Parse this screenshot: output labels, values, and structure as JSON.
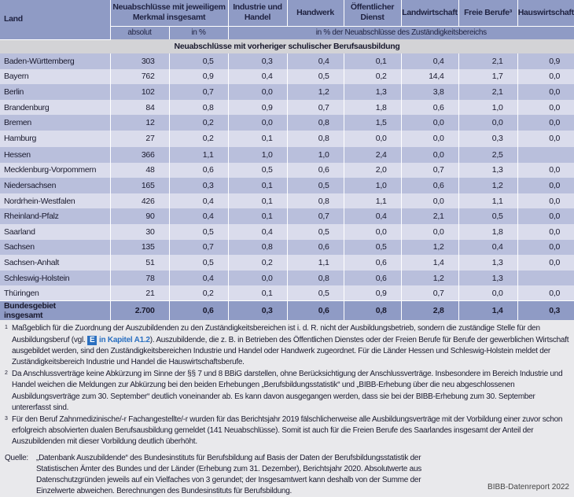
{
  "header": {
    "land": "Land",
    "neuabschluesse": "Neuabschlüsse mit jeweiligem Merkmal insgesamt",
    "columns": [
      "Industrie und Handel",
      "Handwerk",
      "Öffentlicher Dienst",
      "Landwirtschaft",
      "Freie Berufe³",
      "Hauswirtschaft"
    ],
    "absolut": "absolut",
    "in_pct": "in %",
    "in_pct_bereich": "in % der Neuabschlüsse des Zuständigkeitsbereichs"
  },
  "section_title": "Neuabschlüsse mit vorheriger schulischer Berufsausbildung",
  "rows": [
    [
      "Baden-Württemberg",
      "303",
      "0,5",
      "0,3",
      "0,4",
      "0,1",
      "0,4",
      "2,1",
      "0,9"
    ],
    [
      "Bayern",
      "762",
      "0,9",
      "0,4",
      "0,5",
      "0,2",
      "14,4",
      "1,7",
      "0,0"
    ],
    [
      "Berlin",
      "102",
      "0,7",
      "0,0",
      "1,2",
      "1,3",
      "3,8",
      "2,1",
      "0,0"
    ],
    [
      "Brandenburg",
      "84",
      "0,8",
      "0,9",
      "0,7",
      "1,8",
      "0,6",
      "1,0",
      "0,0"
    ],
    [
      "Bremen",
      "12",
      "0,2",
      "0,0",
      "0,8",
      "1,5",
      "0,0",
      "0,0",
      "0,0"
    ],
    [
      "Hamburg",
      "27",
      "0,2",
      "0,1",
      "0,8",
      "0,0",
      "0,0",
      "0,3",
      "0,0"
    ],
    [
      "Hessen",
      "366",
      "1,1",
      "1,0",
      "1,0",
      "2,4",
      "0,0",
      "2,5",
      ""
    ],
    [
      "Mecklenburg-Vorpommern",
      "48",
      "0,6",
      "0,5",
      "0,6",
      "2,0",
      "0,7",
      "1,3",
      "0,0"
    ],
    [
      "Niedersachsen",
      "165",
      "0,3",
      "0,1",
      "0,5",
      "1,0",
      "0,6",
      "1,2",
      "0,0"
    ],
    [
      "Nordrhein-Westfalen",
      "426",
      "0,4",
      "0,1",
      "0,8",
      "1,1",
      "0,0",
      "1,1",
      "0,0"
    ],
    [
      "Rheinland-Pfalz",
      "90",
      "0,4",
      "0,1",
      "0,7",
      "0,4",
      "2,1",
      "0,5",
      "0,0"
    ],
    [
      "Saarland",
      "30",
      "0,5",
      "0,4",
      "0,5",
      "0,0",
      "0,0",
      "1,8",
      "0,0"
    ],
    [
      "Sachsen",
      "135",
      "0,7",
      "0,8",
      "0,6",
      "0,5",
      "1,2",
      "0,4",
      "0,0"
    ],
    [
      "Sachsen-Anhalt",
      "51",
      "0,5",
      "0,2",
      "1,1",
      "0,6",
      "1,4",
      "1,3",
      "0,0"
    ],
    [
      "Schleswig-Holstein",
      "78",
      "0,4",
      "0,0",
      "0,8",
      "0,6",
      "1,2",
      "1,3",
      ""
    ],
    [
      "Thüringen",
      "21",
      "0,2",
      "0,1",
      "0,5",
      "0,9",
      "0,7",
      "0,0",
      "0,0"
    ]
  ],
  "total": [
    "Bundesgebiet insgesamt",
    "2.700",
    "0,6",
    "0,3",
    "0,6",
    "0,8",
    "2,8",
    "1,4",
    "0,3"
  ],
  "footnotes": {
    "fn1_mark": "1",
    "fn1_a": "Maßgeblich für die Zuordnung der Auszubildenden zu den Zuständigkeitsbereichen ist i. d. R. nicht der Ausbildungsbetrieb, sondern die zuständige Stelle für den Ausbildungsberuf (vgl.",
    "fn1_icon": "E",
    "fn1_link": "in Kapitel A1.2",
    "fn1_b": "). Auszubildende, die z. B. in Betrieben des Öffentlichen Dienstes oder der Freien Berufe für Berufe der gewerblichen Wirtschaft ausgebildet werden, sind den Zuständigkeitsbereichen Industrie und Handel oder Handwerk zugeordnet. Für die Länder Hessen und Schleswig-Holstein meldet der Zuständigkeitsbereich Industrie und Handel die Hauswirtschaftsberufe.",
    "fn2_mark": "2",
    "fn2": "Da Anschlussverträge keine Abkürzung im Sinne der §§ 7 und 8 BBiG darstellen, ohne Berücksichtigung der Anschlussverträge. Insbesondere im Bereich Industrie und Handel weichen die Meldungen zur Abkürzung bei den beiden Erhebungen „Berufsbildungsstatistik“ und „BIBB-Erhebung über die neu abgeschlossenen Ausbildungsverträge zum 30. September“ deutlich voneinander ab. Es kann davon ausgegangen werden, dass sie bei der BIBB-Erhebung zum 30. September untererfasst sind.",
    "fn3_mark": "3",
    "fn3": "Für den Beruf Zahnmedizinische/-r Fachangestellte/-r wurden für das Berichtsjahr 2019 fälschlicherweise alle Ausbildungsverträge mit der Vorbildung einer zuvor schon erfolgreich absolvierten dualen Berufsausbildung gemeldet (141 Neuabschlüsse). Somit ist auch für die Freien Berufe des Saarlandes insgesamt der Anteil der Auszubildenden mit dieser Vorbildung deutlich überhöht."
  },
  "source": {
    "label": "Quelle:",
    "text": "„Datenbank Auszubildende“ des Bundesinstituts für Berufsbildung auf Basis der Daten der Berufsbildungsstatistik der Statistischen Ämter des Bundes und der Länder (Erhebung zum 31. Dezember), Berichtsjahr 2020. Absolutwerte aus Datenschutzgründen jeweils auf ein Vielfaches von 3 gerundet; der Insgesamtwert kann deshalb von der Summe der Einzelwerte abweichen. Berechnungen des Bundesinstituts für Berufsbildung."
  },
  "credit": "BIBB-Datenreport 2022",
  "colors": {
    "header": "#8f9bc5",
    "row_dark": "#b9bfdc",
    "row_light": "#dadcec",
    "section": "#d3d3d6",
    "link": "#2a6fc0"
  }
}
